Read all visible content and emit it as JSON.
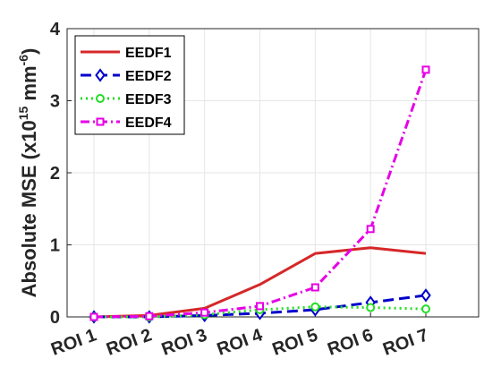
{
  "chart_data": {
    "type": "line",
    "categories": [
      "ROI 1",
      "ROI 2",
      "ROI 3",
      "ROI 4",
      "ROI 5",
      "ROI 6",
      "ROI 7"
    ],
    "ylabel": "Absolute MSE (x10",
    "ylabel_exp1": "15",
    "ylabel_mid": " mm",
    "ylabel_exp2": "-6",
    "ylabel_end": ")",
    "ylim": [
      0,
      4
    ],
    "yticks": [
      "0",
      "1",
      "2",
      "3",
      "4"
    ],
    "grid": true,
    "legend_position": "top-left",
    "series": [
      {
        "name": "EEDF1",
        "color": "#d62728",
        "dash": "solid",
        "marker": "none",
        "values": [
          0.0,
          0.02,
          0.12,
          0.45,
          0.88,
          0.96,
          0.88
        ]
      },
      {
        "name": "EEDF2",
        "color": "#0000cc",
        "dash": "dashed",
        "marker": "diamond",
        "values": [
          0.0,
          0.0,
          0.02,
          0.05,
          0.1,
          0.2,
          0.3
        ]
      },
      {
        "name": "EEDF3",
        "color": "#22dd22",
        "dash": "dotted",
        "marker": "circle",
        "values": [
          0.0,
          0.0,
          0.03,
          0.1,
          0.14,
          0.13,
          0.11
        ]
      },
      {
        "name": "EEDF4",
        "color": "#e600e6",
        "dash": "dashdot",
        "marker": "square",
        "values": [
          0.0,
          0.01,
          0.06,
          0.15,
          0.41,
          1.22,
          3.43
        ]
      }
    ]
  }
}
